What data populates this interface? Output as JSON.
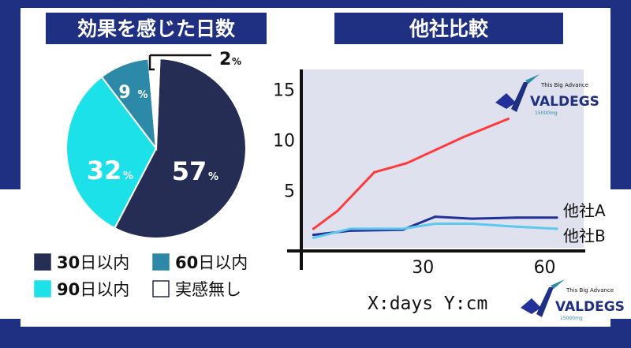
{
  "colors": {
    "navy": "#1f2f82",
    "navy_dark": "#25294f",
    "slice_30": "#262d55",
    "slice_60": "#2c8aa8",
    "slice_90": "#1ce1e8",
    "slice_none": "#ffffff",
    "line_red": "#ff3a3a",
    "line_a": "#22309a",
    "line_b": "#5cc8ee",
    "plot_bg": "#e0e1ef"
  },
  "pie": {
    "title": "効果を感じた日数",
    "percent_suffix": "%"
  },
  "comparison": {
    "title": "他社比較",
    "footer_note": "X:days Y:cm"
  },
  "logo": {
    "brand": "VALDEGS",
    "tagline": "This Big Advance",
    "dose": "15000mg"
  },
  "chart_data": [
    {
      "type": "pie",
      "title": "効果を感じた日数",
      "slices": [
        {
          "label": "30日以内",
          "value": 57,
          "color": "#262d55",
          "num": "30",
          "rest": "日以内"
        },
        {
          "label": "90日以内",
          "value": 32,
          "color": "#1ce1e8",
          "num": "90",
          "rest": "日以内"
        },
        {
          "label": "60日以内",
          "value": 9,
          "color": "#2c8aa8",
          "num": "60",
          "rest": "日以内"
        },
        {
          "label": "実感無し",
          "value": 2,
          "color": "#ffffff",
          "num": "",
          "rest": "実感無し"
        }
      ],
      "value_labels": [
        "57",
        "32",
        "9",
        "2"
      ]
    },
    {
      "type": "line",
      "title": "他社比較",
      "xlabel": "",
      "ylabel": "",
      "xlim": [
        0,
        70
      ],
      "ylim": [
        -1,
        17
      ],
      "xticks": [
        30,
        60
      ],
      "yticks": [
        5,
        10,
        15
      ],
      "grid": false,
      "series": [
        {
          "name": "",
          "color": "#ff3a3a",
          "points": [
            [
              3,
              1.2
            ],
            [
              9,
              3
            ],
            [
              18,
              6.8
            ],
            [
              26,
              7.7
            ],
            [
              40,
              10.3
            ],
            [
              51,
              12.1
            ]
          ]
        },
        {
          "name": "他社A",
          "color": "#22309a",
          "points": [
            [
              3,
              0.6
            ],
            [
              12,
              1
            ],
            [
              25,
              1.1
            ],
            [
              33,
              2.4
            ],
            [
              42,
              2.2
            ],
            [
              53,
              2.3
            ],
            [
              63,
              2.3
            ]
          ]
        },
        {
          "name": "他社B",
          "color": "#5cc8ee",
          "points": [
            [
              3,
              0.3
            ],
            [
              12,
              1.2
            ],
            [
              25,
              1.2
            ],
            [
              33,
              1.7
            ],
            [
              42,
              1.7
            ],
            [
              53,
              1.4
            ],
            [
              63,
              1.2
            ]
          ]
        }
      ]
    }
  ]
}
